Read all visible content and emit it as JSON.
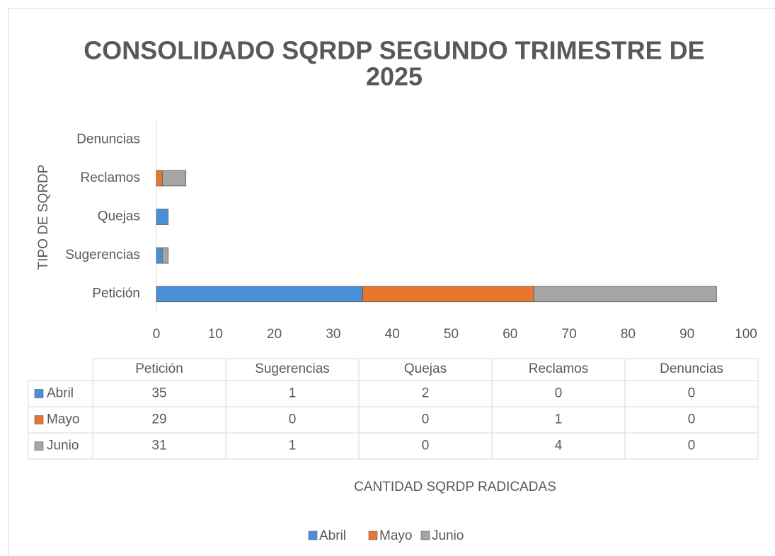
{
  "chart_data": {
    "type": "bar",
    "orientation": "horizontal",
    "stacked": true,
    "title_lines": [
      "CONSOLIDADO SQRDP SEGUNDO TRIMESTRE DE",
      "2025"
    ],
    "x_label": "CANTIDAD SQRDP RADICADAS",
    "y_label": "TIPO DE SQRDP",
    "categories": [
      "Petición",
      "Sugerencias",
      "Quejas",
      "Reclamos",
      "Denuncias"
    ],
    "series": [
      {
        "name": "Abril",
        "color": "#4a90d9",
        "values": [
          35,
          1,
          2,
          0,
          0
        ]
      },
      {
        "name": "Mayo",
        "color": "#e8772e",
        "values": [
          29,
          0,
          0,
          1,
          0
        ]
      },
      {
        "name": "Junio",
        "color": "#a5a5a5",
        "values": [
          31,
          1,
          0,
          4,
          0
        ]
      }
    ],
    "xlim": [
      0,
      100
    ],
    "xticks": [
      0,
      10,
      20,
      30,
      40,
      50,
      60,
      70,
      80,
      90,
      100
    ],
    "grid": false,
    "legend": "bottom",
    "data_table": true
  }
}
